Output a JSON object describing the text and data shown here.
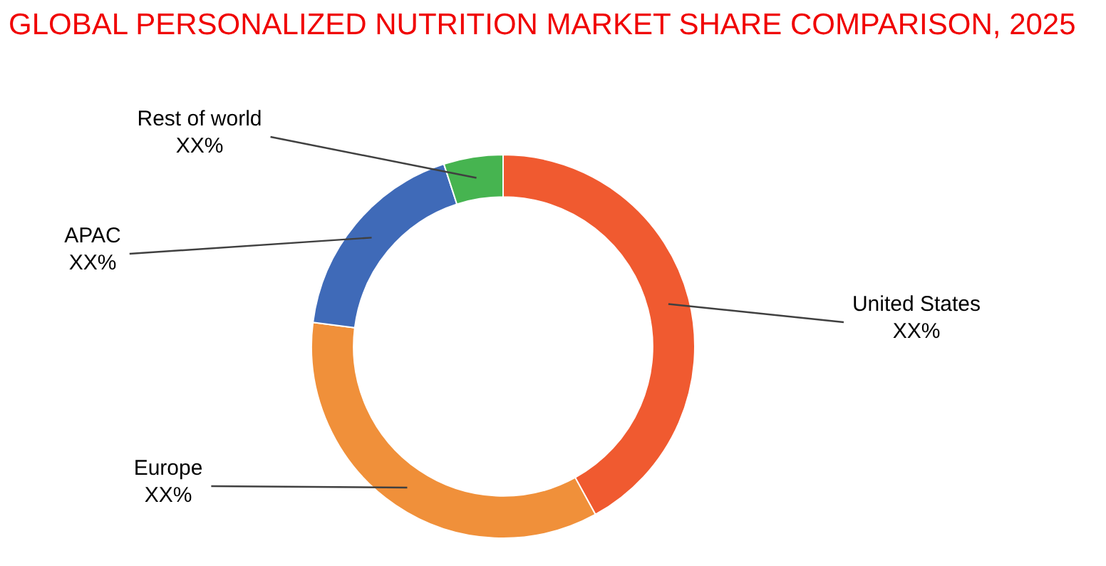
{
  "chart_data": {
    "type": "donut",
    "title": "GLOBAL PERSONALIZED NUTRITION MARKET SHARE COMPARISON, 2025",
    "categories": [
      "United States",
      "Europe",
      "APAC",
      "Rest of world"
    ],
    "values": [
      42,
      35,
      18,
      5
    ],
    "colors": [
      "#f05a30",
      "#f0903a",
      "#3f6ab8",
      "#46b450"
    ],
    "value_labels": [
      "XX%",
      "XX%",
      "XX%",
      "XX%"
    ],
    "legend": false
  }
}
